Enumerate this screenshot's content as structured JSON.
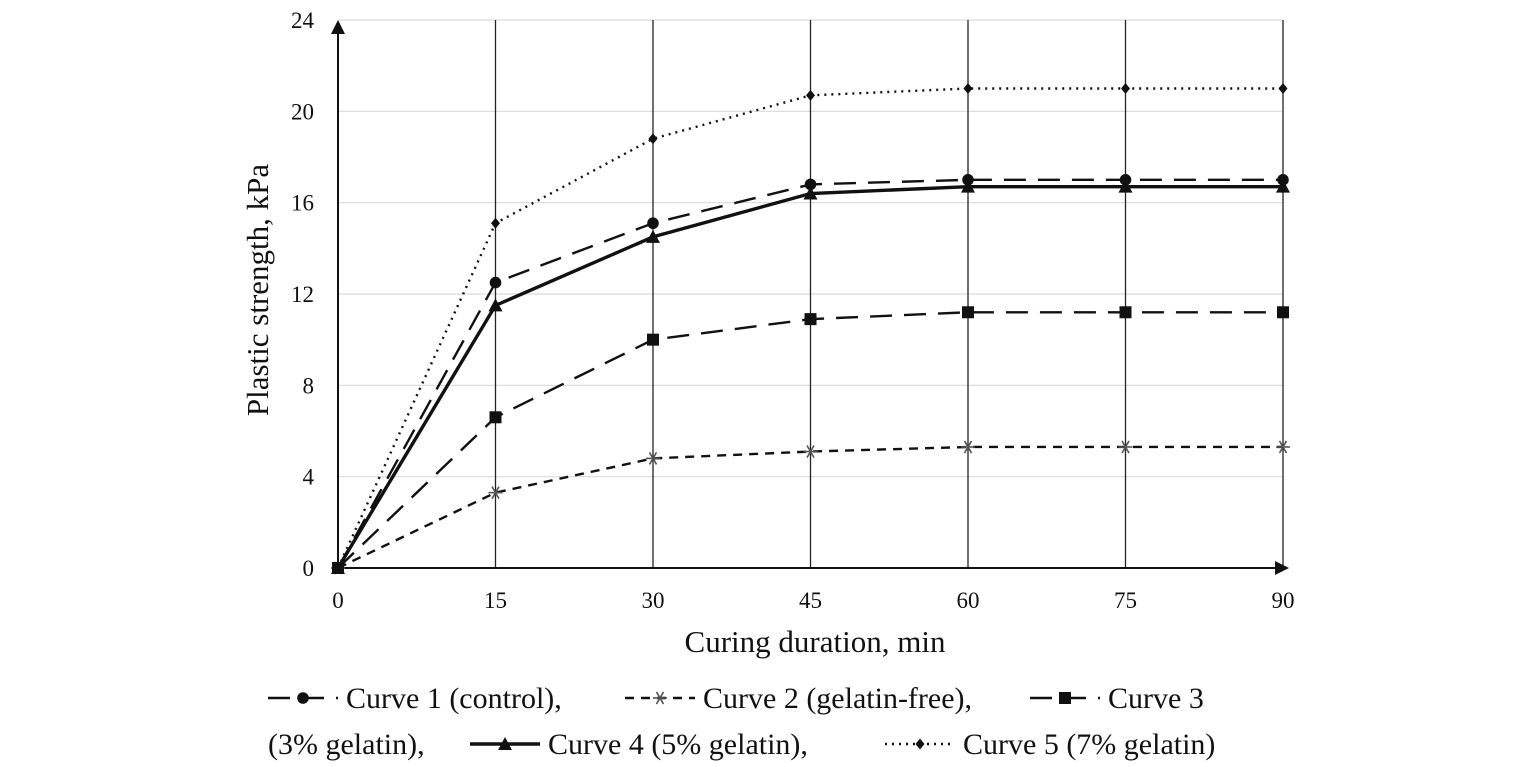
{
  "chart_data": {
    "type": "line",
    "xlabel": "Curing duration, min",
    "ylabel": "Plastic strength, kPa",
    "x": [
      0,
      15,
      30,
      45,
      60,
      75,
      90
    ],
    "xlim": [
      0,
      90
    ],
    "ylim": [
      0,
      24
    ],
    "xticks": [
      "0",
      "15",
      "30",
      "45",
      "60",
      "75",
      "90"
    ],
    "yticks": [
      "0",
      "4",
      "8",
      "12",
      "16",
      "20",
      "24"
    ],
    "grid": {
      "vertical": true,
      "horizontal": true
    },
    "legend_position": "bottom",
    "series": [
      {
        "name": "Curve 1 (control),",
        "values": [
          0,
          12.5,
          15.1,
          16.8,
          17.0,
          17.0,
          17.0
        ],
        "marker": "circle",
        "dash": "long-dash",
        "color": "#111111"
      },
      {
        "name": "Curve 2 (gelatin-free),",
        "values": [
          0,
          3.3,
          4.8,
          5.1,
          5.3,
          5.3,
          5.3
        ],
        "marker": "asterisk",
        "dash": "short-dash",
        "color": "#111111"
      },
      {
        "name": "Curve 3 (3% gelatin),",
        "values": [
          0,
          6.6,
          10.0,
          10.9,
          11.2,
          11.2,
          11.2
        ],
        "marker": "square",
        "dash": "long-dash",
        "color": "#111111"
      },
      {
        "name": "Curve 4 (5% gelatin),",
        "values": [
          0,
          11.5,
          14.5,
          16.4,
          16.7,
          16.7,
          16.7
        ],
        "marker": "triangle",
        "dash": "solid",
        "color": "#111111"
      },
      {
        "name": "Curve 5 (7% gelatin)",
        "values": [
          0,
          15.1,
          18.8,
          20.7,
          21.0,
          21.0,
          21.0
        ],
        "marker": "diamond",
        "dash": "dotted",
        "color": "#111111"
      }
    ]
  }
}
